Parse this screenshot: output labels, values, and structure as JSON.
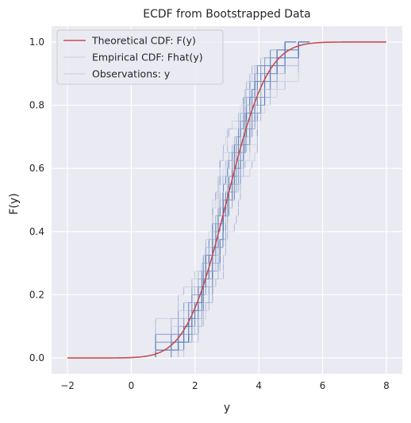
{
  "chart_data": {
    "type": "line",
    "title": "ECDF from Bootstrapped Data",
    "xlabel": "y",
    "ylabel": "F(y)",
    "xlim": [
      -2.5,
      8.5
    ],
    "ylim": [
      -0.05,
      1.05
    ],
    "xticks": [
      -2,
      0,
      2,
      4,
      6,
      8
    ],
    "yticks": [
      0.0,
      0.2,
      0.4,
      0.6,
      0.8,
      1.0
    ],
    "xtick_labels": [
      "−2",
      "0",
      "2",
      "4",
      "6",
      "8"
    ],
    "ytick_labels": [
      "0.0",
      "0.2",
      "0.4",
      "0.6",
      "0.8",
      "1.0"
    ],
    "grid": true,
    "legend_position": "upper-left",
    "legend": [
      {
        "label": "Theoretical CDF: F(y)",
        "style": "line",
        "color": "#c44e52",
        "opacity": 1
      },
      {
        "label": "Empirical CDF: Fhat(y)",
        "style": "line",
        "color": "#4c72b0",
        "opacity": 0.15
      },
      {
        "label": "Observations: y",
        "style": "line",
        "color": "#4c72b0",
        "opacity": 0.15
      }
    ],
    "theoretical_cdf": {
      "distribution": "normal",
      "mean": 3.0,
      "sd": 1.0,
      "x_range": [
        -2,
        8
      ],
      "color": "#c44e52"
    },
    "bootstrap_ecdfs": {
      "count": 30,
      "points_per_sample": 40,
      "x_min": -0.1,
      "x_max": 5.5,
      "color": "#4c72b0"
    },
    "colors": {
      "background": "#eaeaf2",
      "grid": "#ffffff",
      "theoretical": "#c44e52",
      "empirical": "#4c72b0",
      "text": "#262626"
    }
  }
}
